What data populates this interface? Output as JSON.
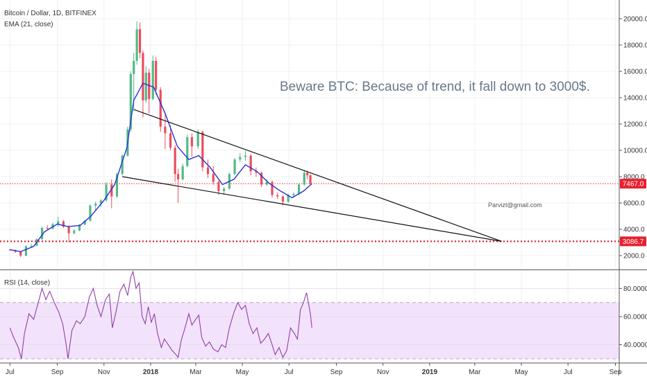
{
  "header": {
    "symbol_title": "Bitcoin / Dollar, 1D, BITFINEX",
    "ema_label": "EMA (21, close)"
  },
  "annotations": {
    "note": "Beware BTC: Because of trend, it fall down to 3000$.",
    "email": "Parvizt@gmail.com"
  },
  "colors": {
    "up_candle": "#53b987",
    "down_candle": "#eb4d5c",
    "ema": "#2531d6",
    "rsi_line": "#8e3fa8",
    "rsi_band": "#f3e2fb",
    "price_tag": "#e8212f",
    "target_line": "#e8212f",
    "trendline": "#111111"
  },
  "chart_data": [
    {
      "name": "price",
      "type": "candlestick",
      "title": "Bitcoin / Dollar, 1D, BITFINEX",
      "series": [
        {
          "name": "EMA (21, close)",
          "points": [
            [
              "2017-07-01",
              2450
            ],
            [
              "2017-07-15",
              2300
            ],
            [
              "2017-08-01",
              2700
            ],
            [
              "2017-08-15",
              3800
            ],
            [
              "2017-09-01",
              4400
            ],
            [
              "2017-09-15",
              4200
            ],
            [
              "2017-10-01",
              4300
            ],
            [
              "2017-10-15",
              5000
            ],
            [
              "2017-11-01",
              6200
            ],
            [
              "2017-11-15",
              7400
            ],
            [
              "2017-12-01",
              10200
            ],
            [
              "2017-12-10",
              13800
            ],
            [
              "2017-12-22",
              15100
            ],
            [
              "2018-01-05",
              14800
            ],
            [
              "2018-01-20",
              12800
            ],
            [
              "2018-02-05",
              10300
            ],
            [
              "2018-02-20",
              9300
            ],
            [
              "2018-03-05",
              9600
            ],
            [
              "2018-03-20",
              8700
            ],
            [
              "2018-04-05",
              7400
            ],
            [
              "2018-04-20",
              7800
            ],
            [
              "2018-05-05",
              8900
            ],
            [
              "2018-05-20",
              8400
            ],
            [
              "2018-06-05",
              7500
            ],
            [
              "2018-06-20",
              6900
            ],
            [
              "2018-07-05",
              6400
            ],
            [
              "2018-07-20",
              6900
            ],
            [
              "2018-07-31",
              7467
            ]
          ]
        }
      ],
      "candles": [
        [
          "2017-07-01",
          2450,
          2500,
          2380,
          2420
        ],
        [
          "2017-07-08",
          2420,
          2480,
          2200,
          2300
        ],
        [
          "2017-07-15",
          2300,
          2350,
          1900,
          2000
        ],
        [
          "2017-07-22",
          2000,
          2800,
          1950,
          2700
        ],
        [
          "2017-07-29",
          2700,
          2900,
          2600,
          2750
        ],
        [
          "2017-08-05",
          2750,
          3300,
          2700,
          3250
        ],
        [
          "2017-08-12",
          3250,
          4200,
          3200,
          4100
        ],
        [
          "2017-08-19",
          4100,
          4300,
          3900,
          4050
        ],
        [
          "2017-08-26",
          4050,
          4500,
          4000,
          4400
        ],
        [
          "2017-09-02",
          4400,
          4950,
          4200,
          4600
        ],
        [
          "2017-09-09",
          4600,
          4700,
          4100,
          4200
        ],
        [
          "2017-09-16",
          4200,
          4300,
          3000,
          3700
        ],
        [
          "2017-09-23",
          3700,
          4000,
          3600,
          3900
        ],
        [
          "2017-09-30",
          3900,
          4400,
          3850,
          4350
        ],
        [
          "2017-10-07",
          4350,
          4700,
          4300,
          4650
        ],
        [
          "2017-10-14",
          4650,
          5900,
          4600,
          5800
        ],
        [
          "2017-10-21",
          5800,
          6100,
          5400,
          5950
        ],
        [
          "2017-10-28",
          5950,
          6300,
          5700,
          6200
        ],
        [
          "2017-11-04",
          6200,
          7600,
          6100,
          7400
        ],
        [
          "2017-11-11",
          7400,
          7800,
          5600,
          6500
        ],
        [
          "2017-11-18",
          6500,
          8300,
          6400,
          8200
        ],
        [
          "2017-11-25",
          8200,
          9700,
          8100,
          9600
        ],
        [
          "2017-12-02",
          9600,
          11800,
          9500,
          11600
        ],
        [
          "2017-12-06",
          11600,
          16000,
          11400,
          15800
        ],
        [
          "2017-12-10",
          15800,
          17400,
          13000,
          16800
        ],
        [
          "2017-12-14",
          16800,
          19800,
          16500,
          19200
        ],
        [
          "2017-12-18",
          19200,
          19700,
          17000,
          17400
        ],
        [
          "2017-12-22",
          17400,
          17600,
          12500,
          13800
        ],
        [
          "2017-12-26",
          13800,
          16400,
          13600,
          15900
        ],
        [
          "2017-12-30",
          15900,
          16200,
          12800,
          13900
        ],
        [
          "2018-01-04",
          13900,
          17200,
          13800,
          16800
        ],
        [
          "2018-01-08",
          16800,
          17100,
          14200,
          14600
        ],
        [
          "2018-01-14",
          14600,
          14800,
          11400,
          11800
        ],
        [
          "2018-01-20",
          11800,
          12900,
          10100,
          11300
        ],
        [
          "2018-01-27",
          11300,
          11900,
          10000,
          10200
        ],
        [
          "2018-02-02",
          10200,
          10400,
          7600,
          8200
        ],
        [
          "2018-02-06",
          8200,
          8600,
          6000,
          7800
        ],
        [
          "2018-02-12",
          7800,
          9000,
          7700,
          8800
        ],
        [
          "2018-02-18",
          8800,
          11200,
          8700,
          11000
        ],
        [
          "2018-02-24",
          11000,
          11300,
          9500,
          10300
        ],
        [
          "2018-03-04",
          10300,
          11600,
          10100,
          11400
        ],
        [
          "2018-03-10",
          11400,
          11500,
          8400,
          8700
        ],
        [
          "2018-03-17",
          8700,
          9300,
          7900,
          8200
        ],
        [
          "2018-03-24",
          8200,
          8800,
          7400,
          7600
        ],
        [
          "2018-03-31",
          7600,
          7700,
          6600,
          6900
        ],
        [
          "2018-04-07",
          6900,
          7200,
          6600,
          7100
        ],
        [
          "2018-04-14",
          7100,
          8300,
          7000,
          8200
        ],
        [
          "2018-04-21",
          8200,
          9400,
          8100,
          9300
        ],
        [
          "2018-04-28",
          9300,
          9800,
          9100,
          9500
        ],
        [
          "2018-05-05",
          9500,
          9950,
          9200,
          9600
        ],
        [
          "2018-05-12",
          9600,
          9700,
          8100,
          8400
        ],
        [
          "2018-05-19",
          8400,
          8700,
          8000,
          8300
        ],
        [
          "2018-05-26",
          8300,
          8400,
          7200,
          7400
        ],
        [
          "2018-06-02",
          7400,
          7800,
          7300,
          7600
        ],
        [
          "2018-06-09",
          7600,
          7700,
          6400,
          6600
        ],
        [
          "2018-06-16",
          6600,
          6800,
          6300,
          6500
        ],
        [
          "2018-06-23",
          6500,
          6600,
          5800,
          6100
        ],
        [
          "2018-06-30",
          6100,
          6700,
          6000,
          6600
        ],
        [
          "2018-07-07",
          6600,
          6800,
          6400,
          6700
        ],
        [
          "2018-07-14",
          6700,
          7500,
          6600,
          7400
        ],
        [
          "2018-07-21",
          7400,
          8500,
          7300,
          8300
        ],
        [
          "2018-07-25",
          8300,
          8450,
          7800,
          8100
        ],
        [
          "2018-07-29",
          8100,
          8200,
          7400,
          7467
        ]
      ],
      "trendlines": [
        {
          "name": "upper",
          "from": [
            "2017-12-10",
            13100
          ],
          "to": [
            "2019-04-05",
            3087
          ]
        },
        {
          "name": "lower",
          "from": [
            "2017-11-25",
            8000
          ],
          "to": [
            "2019-04-05",
            3087
          ]
        }
      ],
      "horizontal_lines": [
        {
          "name": "current",
          "value": 7467,
          "style": "dotted"
        },
        {
          "name": "target",
          "value": 3087,
          "style": "dotted-bold"
        }
      ],
      "price_tags": [
        "7467.0",
        "3086.7"
      ],
      "y_ticks": [
        "2000.0",
        "4000.0",
        "6000.0",
        "8000.0",
        "10000.0",
        "12000.0",
        "14000.0",
        "16000.0",
        "18000.0",
        "20000.0"
      ],
      "ylim": [
        1000,
        21000
      ]
    },
    {
      "name": "rsi",
      "type": "line",
      "title": "RSI (14, close)",
      "band": [
        30,
        70
      ],
      "y_ticks": [
        "40.0000",
        "60.0000",
        "80.0000"
      ],
      "ylim": [
        28,
        92
      ],
      "points": [
        [
          "2017-07-01",
          52
        ],
        [
          "2017-07-06",
          45
        ],
        [
          "2017-07-12",
          38
        ],
        [
          "2017-07-16",
          30
        ],
        [
          "2017-07-20",
          48
        ],
        [
          "2017-07-26",
          62
        ],
        [
          "2017-08-01",
          58
        ],
        [
          "2017-08-06",
          68
        ],
        [
          "2017-08-12",
          80
        ],
        [
          "2017-08-17",
          72
        ],
        [
          "2017-08-22",
          78
        ],
        [
          "2017-08-28",
          70
        ],
        [
          "2017-09-03",
          63
        ],
        [
          "2017-09-08",
          55
        ],
        [
          "2017-09-12",
          42
        ],
        [
          "2017-09-15",
          30
        ],
        [
          "2017-09-20",
          50
        ],
        [
          "2017-09-26",
          57
        ],
        [
          "2017-10-01",
          55
        ],
        [
          "2017-10-07",
          60
        ],
        [
          "2017-10-13",
          74
        ],
        [
          "2017-10-18",
          80
        ],
        [
          "2017-10-23",
          68
        ],
        [
          "2017-10-28",
          60
        ],
        [
          "2017-11-03",
          72
        ],
        [
          "2017-11-08",
          76
        ],
        [
          "2017-11-12",
          52
        ],
        [
          "2017-11-17",
          64
        ],
        [
          "2017-11-22",
          78
        ],
        [
          "2017-11-27",
          83
        ],
        [
          "2017-12-02",
          75
        ],
        [
          "2017-12-06",
          88
        ],
        [
          "2017-12-09",
          92
        ],
        [
          "2017-12-13",
          80
        ],
        [
          "2017-12-17",
          84
        ],
        [
          "2017-12-21",
          60
        ],
        [
          "2017-12-25",
          55
        ],
        [
          "2017-12-29",
          67
        ],
        [
          "2018-01-02",
          56
        ],
        [
          "2018-01-06",
          62
        ],
        [
          "2018-01-10",
          48
        ],
        [
          "2018-01-15",
          38
        ],
        [
          "2018-01-19",
          44
        ],
        [
          "2018-01-24",
          40
        ],
        [
          "2018-01-29",
          36
        ],
        [
          "2018-02-03",
          33
        ],
        [
          "2018-02-06",
          31
        ],
        [
          "2018-02-10",
          43
        ],
        [
          "2018-02-15",
          52
        ],
        [
          "2018-02-20",
          62
        ],
        [
          "2018-02-24",
          54
        ],
        [
          "2018-03-01",
          58
        ],
        [
          "2018-03-05",
          61
        ],
        [
          "2018-03-09",
          45
        ],
        [
          "2018-03-14",
          39
        ],
        [
          "2018-03-19",
          42
        ],
        [
          "2018-03-24",
          37
        ],
        [
          "2018-03-30",
          35
        ],
        [
          "2018-04-04",
          40
        ],
        [
          "2018-04-09",
          38
        ],
        [
          "2018-04-14",
          52
        ],
        [
          "2018-04-20",
          63
        ],
        [
          "2018-04-25",
          70
        ],
        [
          "2018-04-30",
          65
        ],
        [
          "2018-05-05",
          68
        ],
        [
          "2018-05-10",
          55
        ],
        [
          "2018-05-15",
          48
        ],
        [
          "2018-05-20",
          52
        ],
        [
          "2018-05-25",
          41
        ],
        [
          "2018-05-30",
          44
        ],
        [
          "2018-06-04",
          48
        ],
        [
          "2018-06-09",
          40
        ],
        [
          "2018-06-13",
          33
        ],
        [
          "2018-06-18",
          38
        ],
        [
          "2018-06-23",
          31
        ],
        [
          "2018-06-28",
          36
        ],
        [
          "2018-07-03",
          52
        ],
        [
          "2018-07-08",
          48
        ],
        [
          "2018-07-12",
          44
        ],
        [
          "2018-07-16",
          65
        ],
        [
          "2018-07-20",
          70
        ],
        [
          "2018-07-24",
          77
        ],
        [
          "2018-07-27",
          68
        ],
        [
          "2018-07-29",
          62
        ],
        [
          "2018-07-31",
          52
        ]
      ]
    }
  ],
  "x_axis": {
    "ticks": [
      {
        "date": "2017-07-01",
        "label": "Jul",
        "bold": false
      },
      {
        "date": "2017-09-01",
        "label": "Sep",
        "bold": false
      },
      {
        "date": "2017-11-01",
        "label": "Nov",
        "bold": false
      },
      {
        "date": "2018-01-01",
        "label": "2018",
        "bold": true
      },
      {
        "date": "2018-03-01",
        "label": "Mar",
        "bold": false
      },
      {
        "date": "2018-05-01",
        "label": "May",
        "bold": false
      },
      {
        "date": "2018-07-01",
        "label": "Jul",
        "bold": false
      },
      {
        "date": "2018-09-01",
        "label": "Sep",
        "bold": false
      },
      {
        "date": "2018-11-01",
        "label": "Nov",
        "bold": false
      },
      {
        "date": "2019-01-01",
        "label": "2019",
        "bold": true
      },
      {
        "date": "2019-03-01",
        "label": "Mar",
        "bold": false
      },
      {
        "date": "2019-05-01",
        "label": "May",
        "bold": false
      },
      {
        "date": "2019-07-01",
        "label": "Jul",
        "bold": false
      },
      {
        "date": "2019-09-01",
        "label": "Sep",
        "bold": false
      }
    ]
  }
}
